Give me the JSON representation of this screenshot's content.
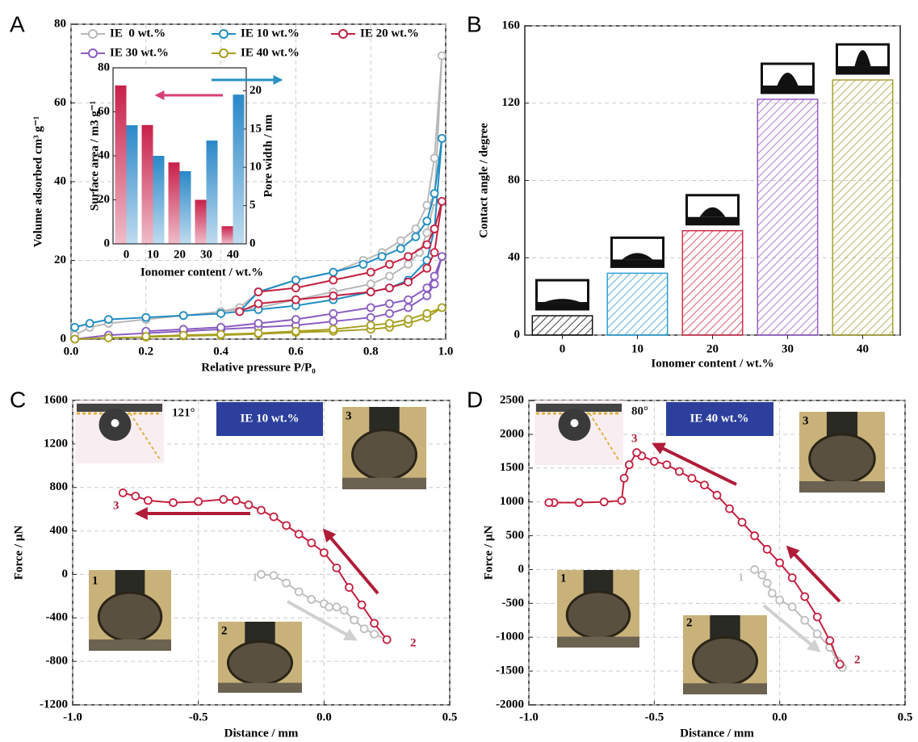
{
  "chart_data": [
    {
      "type": "line",
      "label": "A",
      "xlabel": "Relative pressure P/P₀",
      "ylabel": "Volume adsorbed cm³ g⁻¹",
      "xlim": [
        0,
        1
      ],
      "xticks": [
        {
          "value": 0,
          "label": "0.0"
        },
        0.2,
        0.4,
        0.6,
        0.8,
        {
          "value": 1,
          "label": "1.0"
        }
      ],
      "ylim": [
        0,
        80
      ],
      "yticks": [
        0,
        20,
        40,
        60,
        80
      ],
      "grid": true,
      "legend": "top",
      "series": [
        {
          "name": "IE  0 wt.%",
          "color": "#b8b8b8",
          "x": [
            0.01,
            0.05,
            0.1,
            0.2,
            0.3,
            0.4,
            0.5,
            0.6,
            0.7,
            0.8,
            0.85,
            0.9,
            0.93,
            0.95,
            0.97,
            0.99,
            0.97,
            0.95,
            0.92,
            0.88,
            0.83,
            0.78,
            0.7,
            0.6,
            0.5,
            0.45,
            0.4,
            0.3,
            0.2,
            0.1
          ],
          "values": [
            1,
            3,
            4,
            5,
            6,
            7,
            8,
            10,
            12,
            14,
            16,
            19,
            22,
            27,
            35,
            72,
            46,
            34,
            28,
            25,
            22,
            20,
            17,
            15,
            12,
            8,
            7,
            6,
            5,
            4
          ]
        },
        {
          "name": "IE 10 wt.%",
          "color": "#1e8cc4",
          "x": [
            0.01,
            0.05,
            0.1,
            0.2,
            0.3,
            0.4,
            0.5,
            0.6,
            0.7,
            0.8,
            0.85,
            0.9,
            0.95,
            0.97,
            0.99,
            0.97,
            0.95,
            0.92,
            0.88,
            0.83,
            0.78,
            0.7,
            0.6,
            0.5,
            0.45
          ],
          "values": [
            3,
            4,
            5,
            5.5,
            6,
            6.5,
            7.5,
            8.5,
            10,
            12,
            13,
            15,
            20,
            28,
            51,
            37,
            30,
            26,
            23,
            21,
            19,
            17,
            15,
            12,
            7
          ]
        },
        {
          "name": "IE 20 wt.%",
          "color": "#c42040",
          "x": [
            0.45,
            0.5,
            0.6,
            0.7,
            0.8,
            0.85,
            0.9,
            0.95,
            0.97,
            0.99,
            0.97,
            0.95,
            0.9,
            0.85,
            0.8,
            0.7,
            0.6,
            0.5
          ],
          "values": [
            7,
            9,
            10,
            11,
            12,
            13,
            14.5,
            18,
            22,
            35,
            28,
            24,
            21,
            19,
            17,
            15,
            13,
            12
          ]
        },
        {
          "name": "IE 30 wt.%",
          "color": "#8a5cc0",
          "x": [
            0.01,
            0.1,
            0.2,
            0.3,
            0.4,
            0.5,
            0.6,
            0.7,
            0.8,
            0.85,
            0.9,
            0.95,
            0.97,
            0.99,
            0.97,
            0.95,
            0.9,
            0.85,
            0.8,
            0.7,
            0.6,
            0.5,
            0.4,
            0.3,
            0.2
          ],
          "values": [
            0,
            1,
            1.5,
            2,
            2.5,
            3,
            3.5,
            4.5,
            5.5,
            6.5,
            8,
            11,
            14,
            21,
            16,
            13,
            10,
            9,
            8,
            6.5,
            5,
            4,
            3,
            2.5,
            2
          ]
        },
        {
          "name": "IE 40 wt.%",
          "color": "#a8a020",
          "x": [
            0.01,
            0.1,
            0.2,
            0.3,
            0.4,
            0.5,
            0.6,
            0.7,
            0.8,
            0.85,
            0.9,
            0.95,
            0.99,
            0.95,
            0.9,
            0.85,
            0.8,
            0.7,
            0.6,
            0.5,
            0.4,
            0.3,
            0.2
          ],
          "values": [
            0,
            0.3,
            0.5,
            0.8,
            1,
            1.3,
            1.7,
            2,
            2.5,
            3,
            4,
            5.5,
            8,
            6.5,
            5,
            4,
            3.5,
            2.5,
            2,
            1.5,
            1.2,
            1,
            0.7
          ]
        }
      ],
      "inset": {
        "type": "bar",
        "categories": [
          "0",
          "10",
          "20",
          "30",
          "40"
        ],
        "xlabel": "Ionomer content / wt.%",
        "ylabel": "Surface area / m3 g⁻¹",
        "y2label": "Pore width / nm",
        "ylim": [
          0,
          80
        ],
        "yticks": [
          0,
          20,
          40,
          60,
          80
        ],
        "y2lim": [
          0,
          23
        ],
        "y2ticks": [
          0,
          5,
          10,
          15,
          20
        ],
        "series": [
          {
            "color": "#c8204a",
            "values": [
              72,
              54,
              37,
              20,
              8
            ]
          },
          {
            "color": "#2a88c8",
            "axis": "y2",
            "values": [
              15.5,
              11.5,
              9.5,
              13.5,
              19.5
            ]
          }
        ]
      }
    },
    {
      "type": "bar",
      "label": "B",
      "xlabel": "Ionomer content / wt.%",
      "ylabel": "Contact angle / degree",
      "categories": [
        "0",
        "10",
        "20",
        "30",
        "40"
      ],
      "values": [
        10,
        32,
        54,
        122,
        132
      ],
      "colors": [
        "#111111",
        "#2a9fd8",
        "#d0304a",
        "#9a5ac8",
        "#a8a030"
      ],
      "ylim": [
        0,
        160
      ],
      "yticks": [
        0,
        40,
        80,
        120,
        160
      ],
      "grid": true
    },
    {
      "type": "line",
      "label": "C",
      "xlabel": "Distance / mm",
      "ylabel": "Force / μN",
      "xlim": [
        -1,
        0.5
      ],
      "xticks": [
        {
          "value": -1,
          "label": "-1.0"
        },
        -0.5,
        {
          "value": 0,
          "label": "0.0"
        },
        0.5
      ],
      "ylim": [
        -1200,
        1600
      ],
      "yticks": [
        -1200,
        -800,
        -400,
        0,
        400,
        800,
        1200,
        1600
      ],
      "grid": true,
      "annotations": [
        "121°",
        "IE 10 wt.%",
        "1",
        "2",
        "3"
      ],
      "photo_labels": [
        "3",
        "1",
        "2"
      ],
      "series": [
        {
          "color": "#bdbdbd",
          "x": [
            -0.25,
            -0.2,
            -0.15,
            -0.1,
            -0.05,
            0,
            0.02,
            0.05,
            0.08,
            0.12,
            0.16,
            0.2,
            0.25
          ],
          "values": [
            0,
            -10,
            -80,
            -160,
            -230,
            -270,
            -300,
            -300,
            -330,
            -420,
            -500,
            -550,
            -600
          ]
        },
        {
          "color": "#c42040",
          "x": [
            0.25,
            0.2,
            0.15,
            0.1,
            0.05,
            0,
            -0.05,
            -0.1,
            -0.15,
            -0.2,
            -0.25,
            -0.3,
            -0.35,
            -0.4,
            -0.5,
            -0.6,
            -0.7,
            -0.75,
            -0.8
          ],
          "values": [
            -600,
            -450,
            -280,
            -120,
            60,
            200,
            290,
            370,
            450,
            530,
            590,
            640,
            680,
            690,
            670,
            660,
            680,
            720,
            750
          ]
        }
      ]
    },
    {
      "type": "line",
      "label": "D",
      "xlabel": "Distance / mm",
      "ylabel": "Force / μN",
      "xlim": [
        -1,
        0.5
      ],
      "xticks": [
        {
          "value": -1,
          "label": "-1.0"
        },
        -0.5,
        {
          "value": 0,
          "label": "0.0"
        },
        0.5
      ],
      "ylim": [
        -2000,
        2500
      ],
      "yticks": [
        -2000,
        -1500,
        -1000,
        -500,
        0,
        500,
        1000,
        1500,
        2000,
        2500
      ],
      "grid": true,
      "annotations": [
        "80°",
        "IE 40 wt.%",
        "1",
        "2",
        "3"
      ],
      "photo_labels": [
        "3",
        "1",
        "2"
      ],
      "series": [
        {
          "color": "#bdbdbd",
          "x": [
            -0.1,
            -0.07,
            -0.05,
            -0.03,
            0,
            0.05,
            0.1,
            0.15,
            0.2,
            0.23,
            0.25
          ],
          "values": [
            0,
            -80,
            -200,
            -350,
            -450,
            -550,
            -750,
            -950,
            -1150,
            -1350,
            -1450
          ]
        },
        {
          "color": "#c42040",
          "x": [
            0.24,
            0.2,
            0.15,
            0.1,
            0.05,
            0,
            -0.05,
            -0.1,
            -0.15,
            -0.2,
            -0.25,
            -0.3,
            -0.35,
            -0.4,
            -0.45,
            -0.5,
            -0.55,
            -0.57,
            -0.6,
            -0.62,
            -0.63,
            -0.7,
            -0.8,
            -0.9,
            -0.92
          ],
          "values": [
            -1400,
            -1050,
            -700,
            -400,
            -120,
            100,
            300,
            500,
            700,
            900,
            1100,
            1250,
            1350,
            1450,
            1550,
            1600,
            1680,
            1730,
            1550,
            1350,
            1020,
            1000,
            990,
            990,
            990
          ]
        }
      ]
    }
  ]
}
